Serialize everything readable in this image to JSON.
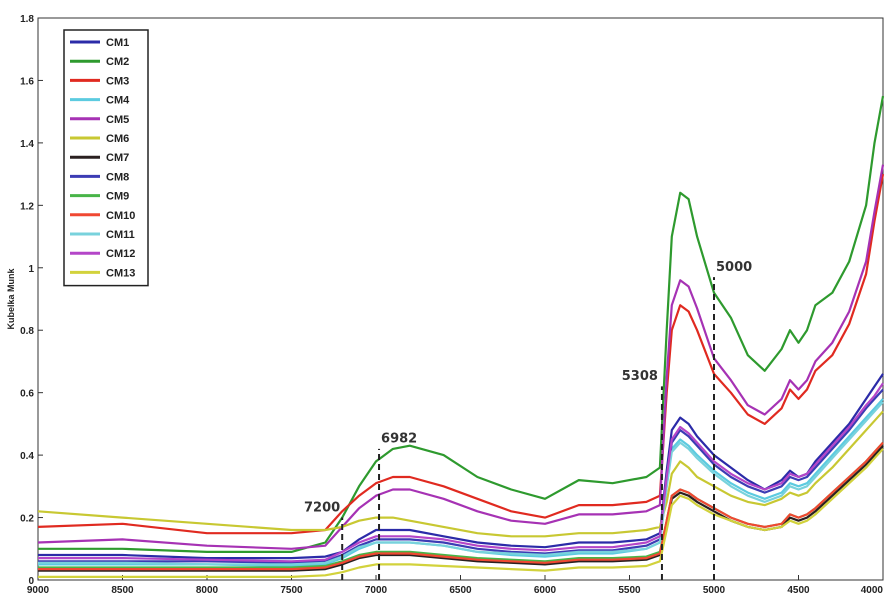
{
  "chart_data": {
    "type": "line",
    "title": "",
    "xlabel": "",
    "ylabel": "Kubelka Munk",
    "x_reversed": true,
    "xlim": [
      9000,
      4000
    ],
    "ylim": [
      0,
      1.8
    ],
    "xticks": [
      "9000",
      "8500",
      "8000",
      "7500",
      "7000",
      "6500",
      "6000",
      "5500",
      "5000",
      "4500",
      "4000"
    ],
    "yticks": [
      "0",
      "0.2",
      "0.4",
      "0.6",
      "0.8",
      "1",
      "1.2",
      "1.4",
      "1.6",
      "1.8"
    ],
    "legend_position": "top-left",
    "grid": false,
    "annotations": [
      {
        "label": "7200",
        "x": 7200
      },
      {
        "label": "6982",
        "x": 6982
      },
      {
        "label": "5308",
        "x": 5308
      },
      {
        "label": "5000",
        "x": 5000
      }
    ],
    "x": [
      9000,
      8500,
      8000,
      7500,
      7300,
      7200,
      7100,
      7000,
      6900,
      6800,
      6600,
      6400,
      6200,
      6000,
      5800,
      5600,
      5400,
      5320,
      5280,
      5250,
      5200,
      5150,
      5100,
      5000,
      4900,
      4800,
      4700,
      4600,
      4550,
      4500,
      4450,
      4400,
      4300,
      4200,
      4100,
      4050,
      4000
    ],
    "series": [
      {
        "name": "CM1",
        "color": "#2b2ba8",
        "values": [
          0.08,
          0.08,
          0.07,
          0.07,
          0.075,
          0.09,
          0.13,
          0.16,
          0.16,
          0.16,
          0.14,
          0.12,
          0.11,
          0.105,
          0.12,
          0.12,
          0.13,
          0.15,
          0.35,
          0.48,
          0.52,
          0.5,
          0.46,
          0.4,
          0.36,
          0.32,
          0.29,
          0.32,
          0.35,
          0.33,
          0.34,
          0.38,
          0.44,
          0.5,
          0.58,
          0.62,
          0.66
        ]
      },
      {
        "name": "CM2",
        "color": "#2e9a2e",
        "values": [
          0.1,
          0.1,
          0.09,
          0.09,
          0.12,
          0.2,
          0.3,
          0.38,
          0.42,
          0.43,
          0.4,
          0.33,
          0.29,
          0.26,
          0.32,
          0.31,
          0.33,
          0.36,
          0.8,
          1.1,
          1.24,
          1.22,
          1.1,
          0.92,
          0.84,
          0.72,
          0.67,
          0.74,
          0.8,
          0.76,
          0.8,
          0.88,
          0.92,
          1.02,
          1.2,
          1.4,
          1.55
        ]
      },
      {
        "name": "CM3",
        "color": "#e02a20",
        "values": [
          0.17,
          0.18,
          0.15,
          0.15,
          0.16,
          0.22,
          0.27,
          0.31,
          0.33,
          0.33,
          0.3,
          0.26,
          0.22,
          0.2,
          0.24,
          0.24,
          0.25,
          0.27,
          0.6,
          0.8,
          0.88,
          0.86,
          0.8,
          0.66,
          0.6,
          0.53,
          0.5,
          0.55,
          0.61,
          0.58,
          0.61,
          0.67,
          0.72,
          0.82,
          0.98,
          1.15,
          1.3
        ]
      },
      {
        "name": "CM4",
        "color": "#5ccbe0",
        "values": [
          0.05,
          0.05,
          0.05,
          0.045,
          0.05,
          0.07,
          0.1,
          0.12,
          0.12,
          0.12,
          0.11,
          0.09,
          0.08,
          0.075,
          0.085,
          0.085,
          0.1,
          0.12,
          0.3,
          0.42,
          0.45,
          0.43,
          0.4,
          0.35,
          0.31,
          0.28,
          0.26,
          0.28,
          0.31,
          0.3,
          0.31,
          0.34,
          0.4,
          0.46,
          0.52,
          0.55,
          0.58
        ]
      },
      {
        "name": "CM5",
        "color": "#a632b4",
        "values": [
          0.12,
          0.13,
          0.11,
          0.1,
          0.11,
          0.17,
          0.23,
          0.27,
          0.29,
          0.29,
          0.26,
          0.22,
          0.19,
          0.18,
          0.21,
          0.21,
          0.22,
          0.24,
          0.65,
          0.88,
          0.96,
          0.94,
          0.87,
          0.71,
          0.64,
          0.56,
          0.53,
          0.58,
          0.64,
          0.61,
          0.64,
          0.7,
          0.76,
          0.86,
          1.02,
          1.18,
          1.33
        ]
      },
      {
        "name": "CM6",
        "color": "#c8c832",
        "values": [
          0.22,
          0.2,
          0.18,
          0.16,
          0.16,
          0.17,
          0.19,
          0.2,
          0.2,
          0.19,
          0.17,
          0.15,
          0.14,
          0.14,
          0.15,
          0.15,
          0.16,
          0.17,
          0.25,
          0.34,
          0.38,
          0.36,
          0.33,
          0.3,
          0.27,
          0.25,
          0.24,
          0.26,
          0.28,
          0.27,
          0.28,
          0.31,
          0.36,
          0.42,
          0.48,
          0.51,
          0.54
        ]
      },
      {
        "name": "CM7",
        "color": "#2a2020",
        "values": [
          0.03,
          0.03,
          0.03,
          0.03,
          0.035,
          0.05,
          0.07,
          0.08,
          0.08,
          0.08,
          0.07,
          0.06,
          0.055,
          0.05,
          0.06,
          0.06,
          0.065,
          0.08,
          0.18,
          0.26,
          0.28,
          0.27,
          0.25,
          0.22,
          0.19,
          0.17,
          0.16,
          0.17,
          0.2,
          0.19,
          0.2,
          0.22,
          0.27,
          0.32,
          0.37,
          0.4,
          0.43
        ]
      },
      {
        "name": "CM8",
        "color": "#3c3cb4",
        "values": [
          0.06,
          0.06,
          0.06,
          0.055,
          0.06,
          0.08,
          0.11,
          0.13,
          0.13,
          0.13,
          0.12,
          0.1,
          0.09,
          0.085,
          0.095,
          0.095,
          0.11,
          0.13,
          0.32,
          0.44,
          0.48,
          0.46,
          0.43,
          0.37,
          0.33,
          0.3,
          0.28,
          0.3,
          0.33,
          0.32,
          0.33,
          0.36,
          0.42,
          0.48,
          0.55,
          0.58,
          0.61
        ]
      },
      {
        "name": "CM9",
        "color": "#48b448",
        "values": [
          0.04,
          0.04,
          0.04,
          0.04,
          0.045,
          0.06,
          0.08,
          0.09,
          0.09,
          0.09,
          0.08,
          0.07,
          0.065,
          0.06,
          0.07,
          0.07,
          0.075,
          0.09,
          0.19,
          0.27,
          0.29,
          0.28,
          0.26,
          0.23,
          0.2,
          0.18,
          0.17,
          0.18,
          0.21,
          0.2,
          0.21,
          0.23,
          0.28,
          0.33,
          0.38,
          0.41,
          0.44
        ]
      },
      {
        "name": "CM10",
        "color": "#f04832",
        "values": [
          0.035,
          0.035,
          0.035,
          0.035,
          0.04,
          0.055,
          0.075,
          0.085,
          0.085,
          0.085,
          0.075,
          0.065,
          0.06,
          0.055,
          0.065,
          0.065,
          0.07,
          0.085,
          0.19,
          0.27,
          0.29,
          0.28,
          0.26,
          0.23,
          0.2,
          0.18,
          0.17,
          0.18,
          0.21,
          0.2,
          0.21,
          0.23,
          0.28,
          0.33,
          0.38,
          0.41,
          0.44
        ]
      },
      {
        "name": "CM11",
        "color": "#78d2dc",
        "values": [
          0.055,
          0.055,
          0.05,
          0.05,
          0.055,
          0.075,
          0.105,
          0.12,
          0.12,
          0.12,
          0.11,
          0.09,
          0.085,
          0.08,
          0.09,
          0.09,
          0.1,
          0.12,
          0.3,
          0.41,
          0.44,
          0.42,
          0.39,
          0.34,
          0.3,
          0.27,
          0.25,
          0.27,
          0.3,
          0.29,
          0.3,
          0.33,
          0.39,
          0.45,
          0.51,
          0.54,
          0.57
        ]
      },
      {
        "name": "CM12",
        "color": "#b446c8",
        "values": [
          0.07,
          0.07,
          0.065,
          0.06,
          0.065,
          0.09,
          0.12,
          0.14,
          0.14,
          0.14,
          0.13,
          0.11,
          0.1,
          0.095,
          0.105,
          0.105,
          0.12,
          0.14,
          0.33,
          0.45,
          0.49,
          0.47,
          0.44,
          0.38,
          0.34,
          0.31,
          0.29,
          0.31,
          0.34,
          0.33,
          0.34,
          0.37,
          0.43,
          0.49,
          0.56,
          0.59,
          0.63
        ]
      },
      {
        "name": "CM13",
        "color": "#d2d23c",
        "values": [
          0.01,
          0.01,
          0.01,
          0.01,
          0.015,
          0.025,
          0.04,
          0.05,
          0.05,
          0.05,
          0.045,
          0.04,
          0.035,
          0.03,
          0.04,
          0.04,
          0.045,
          0.06,
          0.16,
          0.24,
          0.27,
          0.26,
          0.24,
          0.21,
          0.19,
          0.17,
          0.16,
          0.17,
          0.19,
          0.18,
          0.19,
          0.21,
          0.26,
          0.31,
          0.36,
          0.39,
          0.42
        ]
      }
    ]
  }
}
